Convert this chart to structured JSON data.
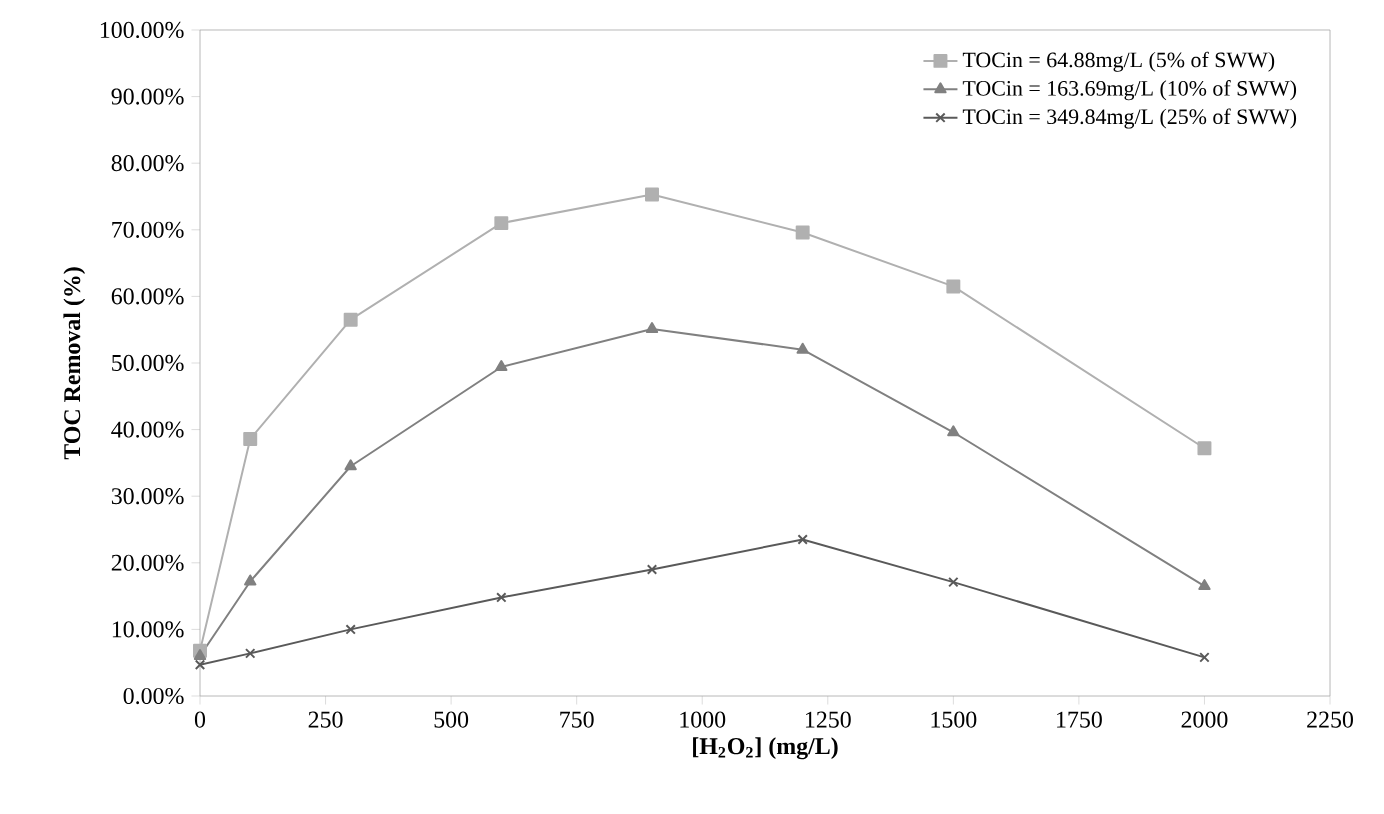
{
  "chart_data": {
    "type": "line",
    "xlabel": "[H$_{2}$O$_{2}$] (mg/L)",
    "ylabel": "TOC Removal (%)",
    "xlim": [
      0,
      2250
    ],
    "xticks": [
      0,
      250,
      500,
      750,
      1000,
      1250,
      1500,
      1750,
      2000,
      2250
    ],
    "ylim": [
      0,
      100
    ],
    "yticks": [
      {
        "value": 0,
        "label": "0.00%"
      },
      {
        "value": 10,
        "label": "10.00%"
      },
      {
        "value": 20,
        "label": "20.00%"
      },
      {
        "value": 30,
        "label": "30.00%"
      },
      {
        "value": 40,
        "label": "40.00%"
      },
      {
        "value": 50,
        "label": "50.00%"
      },
      {
        "value": 60,
        "label": "60.00%"
      },
      {
        "value": 70,
        "label": "70.00%"
      },
      {
        "value": 80,
        "label": "80.00%"
      },
      {
        "value": 90,
        "label": "90.00%"
      },
      {
        "value": 100,
        "label": "100.00%"
      }
    ],
    "x": [
      0,
      100,
      300,
      600,
      900,
      1200,
      1500,
      2000
    ],
    "grid": false,
    "legend": "top right",
    "line_style": "solid",
    "series": [
      {
        "name": "TOCin = 64.88mg/L (5% of SWW)",
        "color": "#b0b0b0",
        "marker": "square",
        "values": [
          6.8,
          38.6,
          56.5,
          71.0,
          75.3,
          69.6,
          61.5,
          37.2
        ]
      },
      {
        "name": "TOCin = 163.69mg/L (10% of SWW)",
        "color": "#808080",
        "marker": "triangle",
        "values": [
          6.0,
          17.2,
          34.5,
          49.4,
          55.1,
          52.0,
          39.6,
          16.5
        ]
      },
      {
        "name": "TOCin = 349.84mg/L (25% of SWW)",
        "color": "#595959",
        "marker": "cross",
        "values": [
          4.7,
          6.4,
          10.0,
          14.8,
          19.0,
          23.5,
          17.1,
          5.8
        ]
      }
    ]
  }
}
